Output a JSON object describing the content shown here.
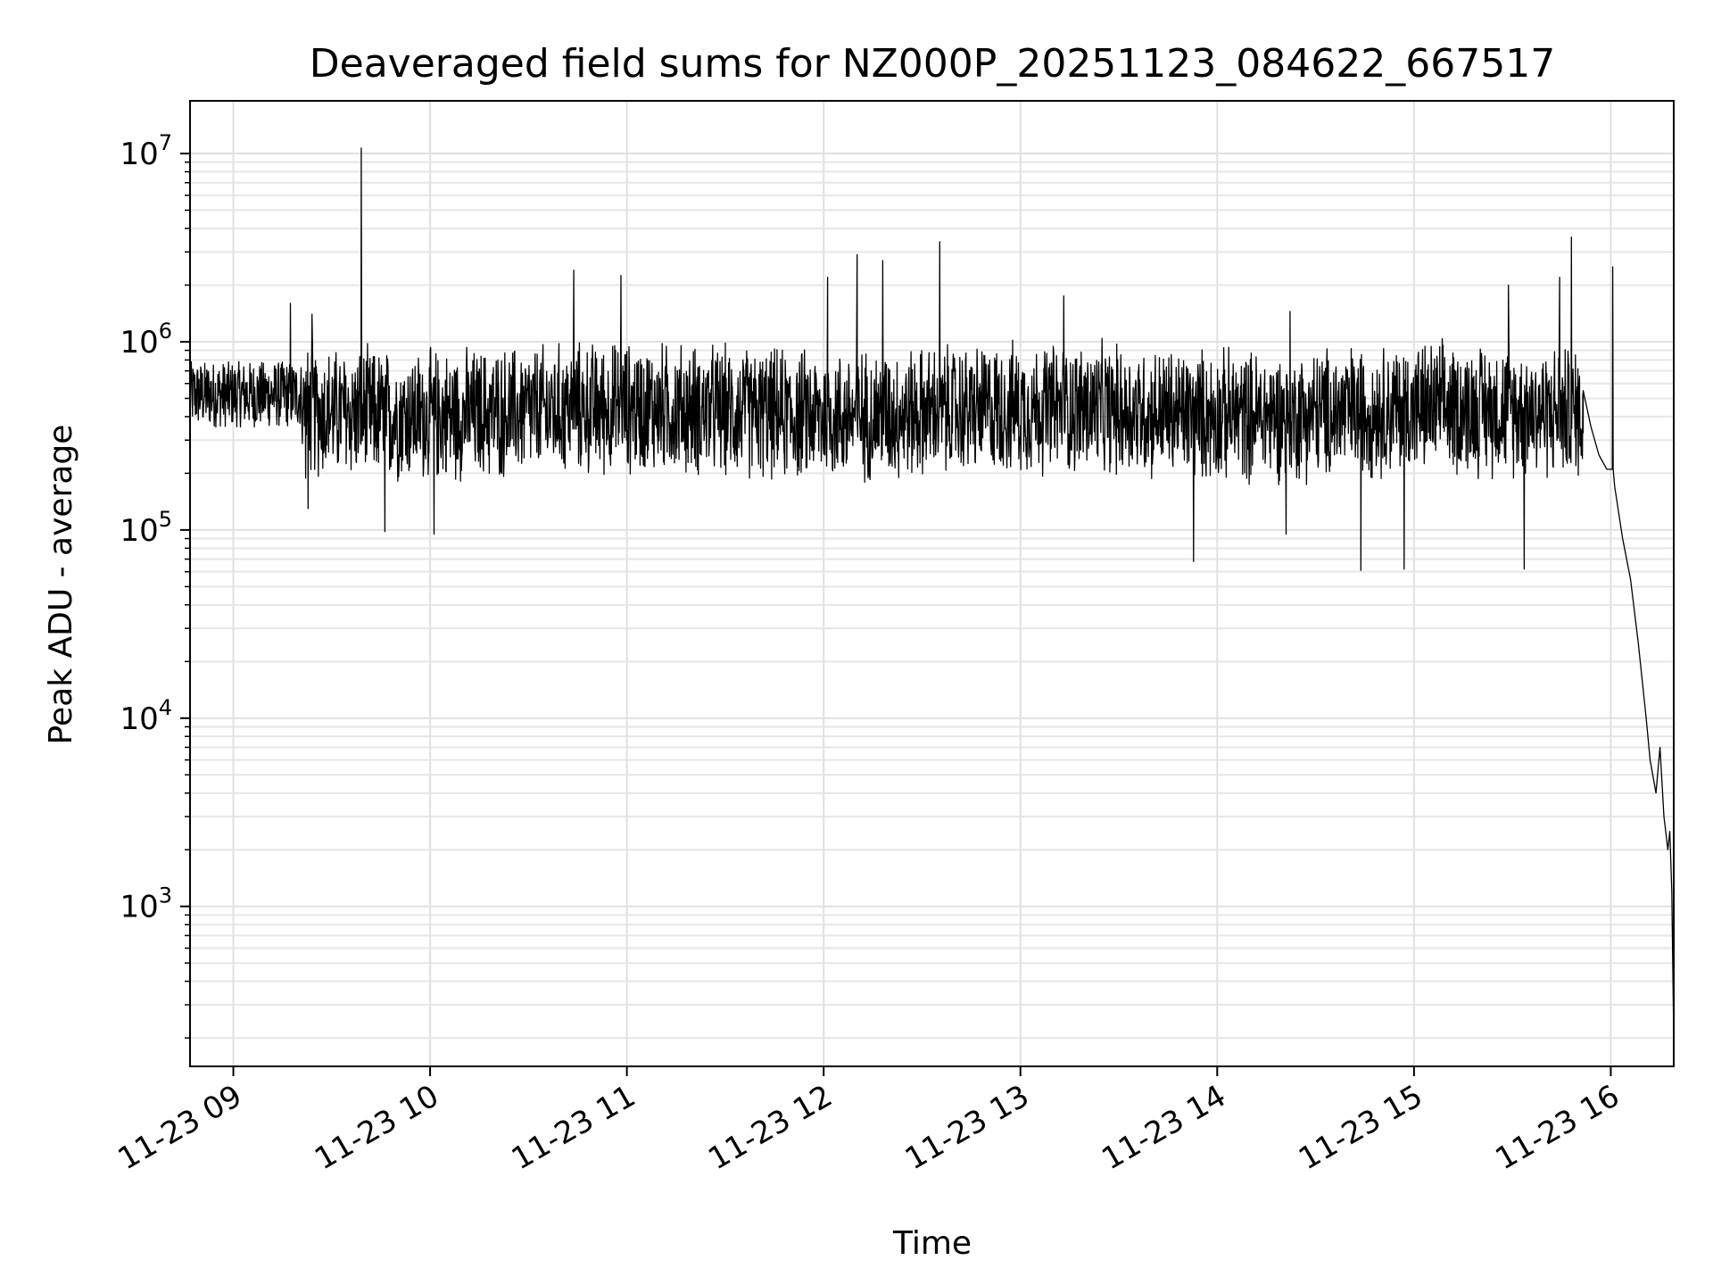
{
  "chart_data": {
    "type": "line",
    "title": "Deaveraged field sums for NZ000P_20251123_084622_667517",
    "xlabel": "Time",
    "ylabel": "Peak ADU - average",
    "yscale": "log",
    "grid": true,
    "xlim": [
      8.78,
      16.32
    ],
    "ylim_log10": [
      2.15,
      7.28
    ],
    "x_ticks": [
      {
        "value": 9,
        "label": "11-23 09"
      },
      {
        "value": 10,
        "label": "11-23 10"
      },
      {
        "value": 11,
        "label": "11-23 11"
      },
      {
        "value": 12,
        "label": "11-23 12"
      },
      {
        "value": 13,
        "label": "11-23 13"
      },
      {
        "value": 14,
        "label": "11-23 14"
      },
      {
        "value": 15,
        "label": "11-23 15"
      },
      {
        "value": 16,
        "label": "11-23 16"
      }
    ],
    "y_ticks": [
      {
        "exp": 3,
        "base": "10",
        "sup": "3"
      },
      {
        "exp": 4,
        "base": "10",
        "sup": "4"
      },
      {
        "exp": 5,
        "base": "10",
        "sup": "5"
      },
      {
        "exp": 6,
        "base": "10",
        "sup": "6"
      },
      {
        "exp": 7,
        "base": "10",
        "sup": "7"
      }
    ],
    "series": [
      {
        "name": "peak_adu_minus_average",
        "color": "#000000",
        "x_hours_start": 8.78,
        "x_hours_end": 15.86,
        "band_low_1e5": 2.0,
        "band_high_1e5": 9.0,
        "spikes": [
          {
            "x": 9.65,
            "y": 10700000
          },
          {
            "x": 10.73,
            "y": 2400000
          },
          {
            "x": 10.97,
            "y": 2250000
          },
          {
            "x": 12.02,
            "y": 2200000
          },
          {
            "x": 12.17,
            "y": 2900000
          },
          {
            "x": 12.3,
            "y": 2700000
          },
          {
            "x": 12.59,
            "y": 3400000
          },
          {
            "x": 13.22,
            "y": 1750000
          },
          {
            "x": 14.37,
            "y": 1450000
          },
          {
            "x": 15.48,
            "y": 2000000
          },
          {
            "x": 15.74,
            "y": 2200000
          },
          {
            "x": 15.8,
            "y": 3600000
          },
          {
            "x": 16.01,
            "y": 2500000
          },
          {
            "x": 9.29,
            "y": 1600000
          },
          {
            "x": 9.4,
            "y": 1400000
          }
        ],
        "dips": [
          {
            "x": 9.38,
            "y": 130000
          },
          {
            "x": 9.77,
            "y": 98000
          },
          {
            "x": 10.02,
            "y": 95000
          },
          {
            "x": 13.88,
            "y": 68000
          },
          {
            "x": 14.73,
            "y": 61000
          },
          {
            "x": 14.95,
            "y": 62000
          },
          {
            "x": 15.56,
            "y": 62000
          },
          {
            "x": 14.35,
            "y": 95000
          }
        ],
        "tail": [
          [
            15.86,
            550000
          ],
          [
            15.9,
            350000
          ],
          [
            15.94,
            250000
          ],
          [
            15.98,
            210000
          ],
          [
            16.02,
            170000
          ],
          [
            16.06,
            90000
          ],
          [
            16.1,
            55000
          ],
          [
            16.14,
            25000
          ],
          [
            16.18,
            10000
          ],
          [
            16.2,
            6000
          ],
          [
            16.23,
            4000
          ],
          [
            16.25,
            7000
          ],
          [
            16.27,
            3000
          ],
          [
            16.29,
            2000
          ],
          [
            16.3,
            2500
          ],
          [
            16.31,
            1200
          ],
          [
            16.32,
            200
          ]
        ]
      }
    ]
  }
}
